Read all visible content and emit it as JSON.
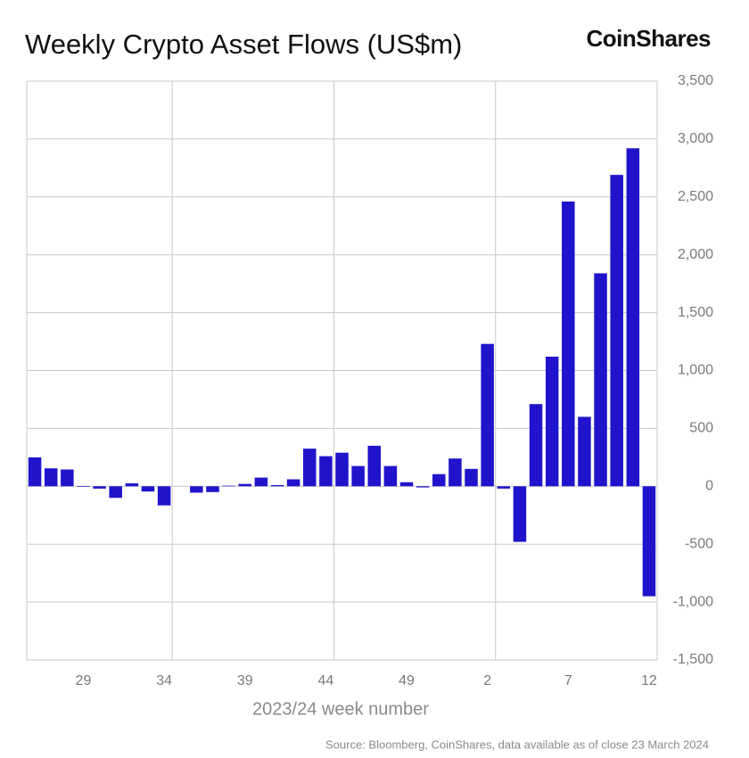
{
  "chart_data": {
    "type": "bar",
    "title": "Weekly Crypto Asset Flows (US$m)",
    "brand": "CoinShares",
    "x_label": "2023/24 week number",
    "source": "Source: Bloomberg, CoinShares, data available as of close 23 March 2024",
    "categories": [
      null,
      null,
      null,
      "29",
      null,
      null,
      null,
      null,
      "34",
      null,
      null,
      null,
      null,
      "39",
      null,
      null,
      null,
      null,
      "44",
      null,
      null,
      null,
      null,
      "49",
      null,
      null,
      null,
      null,
      "2",
      null,
      null,
      null,
      null,
      "7",
      null,
      null,
      null,
      null,
      "12"
    ],
    "values": [
      250,
      155,
      145,
      -5,
      -20,
      -100,
      25,
      -45,
      -165,
      0,
      -55,
      -50,
      5,
      20,
      75,
      10,
      60,
      325,
      260,
      290,
      175,
      350,
      175,
      35,
      -10,
      105,
      240,
      150,
      1230,
      -20,
      -480,
      710,
      1120,
      2460,
      600,
      1840,
      2690,
      2920,
      -950
    ],
    "color": "#1f14cc",
    "ylim": [
      -1500,
      3500
    ],
    "yticks": [
      {
        "value": -1500,
        "label": "-1,500"
      },
      {
        "value": -1000,
        "label": "-1,000"
      },
      -500,
      0,
      500,
      {
        "value": 1000,
        "label": "1,000"
      },
      {
        "value": 1500,
        "label": "1,500"
      },
      {
        "value": 2000,
        "label": "2,000"
      },
      {
        "value": 2500,
        "label": "2,500"
      },
      {
        "value": 3000,
        "label": "3,000"
      },
      {
        "value": 3500,
        "label": "3,500"
      }
    ],
    "grid": true
  }
}
